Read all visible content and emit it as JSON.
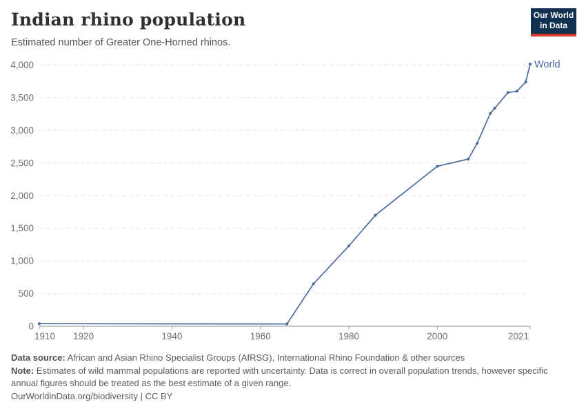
{
  "header": {
    "title": "Indian rhino population",
    "subtitle": "Estimated number of Greater One-Horned rhinos.",
    "logo": {
      "line1": "Our World",
      "line2": "in Data",
      "bg_color": "#12304f",
      "accent_color": "#d43830"
    }
  },
  "chart_data": {
    "type": "line",
    "title": "Indian rhino population",
    "subtitle": "Estimated number of Greater One-Horned rhinos.",
    "xlabel": "",
    "ylabel": "",
    "xlim": [
      1910,
      2021
    ],
    "ylim": [
      0,
      4000
    ],
    "grid": "horizontal-dashed",
    "legend_position": "end-of-line",
    "line_color": "#4c6aa0",
    "grid_color": "#e4e4e4",
    "axis_color": "#a1a1a1",
    "tick_label_color": "#6e6e6e",
    "xticks": [
      {
        "value": 1910,
        "label": "1910"
      },
      {
        "value": 1920,
        "label": "1920"
      },
      {
        "value": 1940,
        "label": "1940"
      },
      {
        "value": 1960,
        "label": "1960"
      },
      {
        "value": 1980,
        "label": "1980"
      },
      {
        "value": 2000,
        "label": "2000"
      },
      {
        "value": 2021,
        "label": "2021"
      }
    ],
    "yticks": [
      {
        "value": 0,
        "label": "0"
      },
      {
        "value": 500,
        "label": "500"
      },
      {
        "value": 1000,
        "label": "1,000"
      },
      {
        "value": 1500,
        "label": "1,500"
      },
      {
        "value": 2000,
        "label": "2,000"
      },
      {
        "value": 2500,
        "label": "2,500"
      },
      {
        "value": 3000,
        "label": "3,000"
      },
      {
        "value": 3500,
        "label": "3,500"
      },
      {
        "value": 4000,
        "label": "4,000"
      }
    ],
    "series": [
      {
        "name": "World",
        "points": [
          [
            1910,
            40
          ],
          [
            1966,
            35
          ],
          [
            1972,
            650
          ],
          [
            1980,
            1230
          ],
          [
            1986,
            1700
          ],
          [
            2000,
            2450
          ],
          [
            2007,
            2560
          ],
          [
            2009,
            2800
          ],
          [
            2012,
            3260
          ],
          [
            2013,
            3340
          ],
          [
            2016,
            3580
          ],
          [
            2018,
            3600
          ],
          [
            2020,
            3740
          ],
          [
            2021,
            4014
          ]
        ]
      }
    ]
  },
  "footer": {
    "source_label": "Data source:",
    "source_text": " African and Asian Rhino Specialist Groups (AfRSG), International Rhino Foundation & other sources",
    "note_label": "Note:",
    "note_text": " Estimates of wild mammal populations are reported with uncertainty. Data is correct in overall population trends, however specific annual figures should be treated as the best estimate of a given range.",
    "cc_text": "OurWorldinData.org/biodiversity | CC BY"
  }
}
